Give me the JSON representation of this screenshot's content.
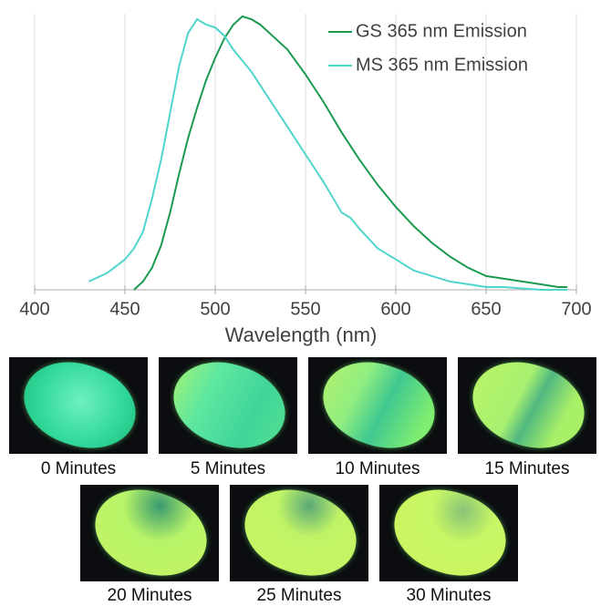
{
  "chart_data": {
    "type": "line",
    "x_label": "Wavelength (nm)",
    "x": [
      430,
      440,
      450,
      455,
      460,
      465,
      470,
      475,
      480,
      485,
      490,
      495,
      500,
      505,
      510,
      515,
      520,
      525,
      530,
      540,
      550,
      560,
      570,
      575,
      580,
      590,
      600,
      610,
      620,
      630,
      640,
      650,
      660,
      670,
      680,
      690,
      695
    ],
    "series": [
      {
        "name": "GS 365 nm Emission",
        "color": "#1a9a50",
        "values": [
          null,
          null,
          null,
          0,
          0.03,
          0.08,
          0.16,
          0.28,
          0.42,
          0.55,
          0.66,
          0.76,
          0.84,
          0.91,
          0.96,
          0.99,
          0.98,
          0.96,
          0.93,
          0.87,
          0.78,
          0.68,
          0.57,
          0.52,
          0.47,
          0.38,
          0.3,
          0.23,
          0.17,
          0.12,
          0.08,
          0.05,
          0.04,
          0.03,
          0.02,
          0.01,
          0.01
        ]
      },
      {
        "name": "MS 365 nm Emission",
        "color": "#4fd6cc",
        "values": [
          0.03,
          0.06,
          0.11,
          0.15,
          0.21,
          0.33,
          0.47,
          0.64,
          0.81,
          0.93,
          0.98,
          0.96,
          0.95,
          0.92,
          0.87,
          0.83,
          0.79,
          0.74,
          0.69,
          0.59,
          0.49,
          0.39,
          0.28,
          0.26,
          0.22,
          0.15,
          0.11,
          0.07,
          0.05,
          0.03,
          0.02,
          0.01,
          0.01,
          0.005,
          0,
          0,
          0
        ]
      }
    ],
    "xlim": [
      400,
      700
    ],
    "xticks": [
      400,
      450,
      500,
      550,
      600,
      650,
      700
    ],
    "ylim": [
      0,
      1
    ],
    "grid": true,
    "legend": "upper right"
  },
  "photos": [
    {
      "caption": "0 Minutes"
    },
    {
      "caption": "5 Minutes"
    },
    {
      "caption": "10 Minutes"
    },
    {
      "caption": "15 Minutes"
    },
    {
      "caption": "20 Minutes"
    },
    {
      "caption": "25 Minutes"
    },
    {
      "caption": "30 Minutes"
    }
  ]
}
